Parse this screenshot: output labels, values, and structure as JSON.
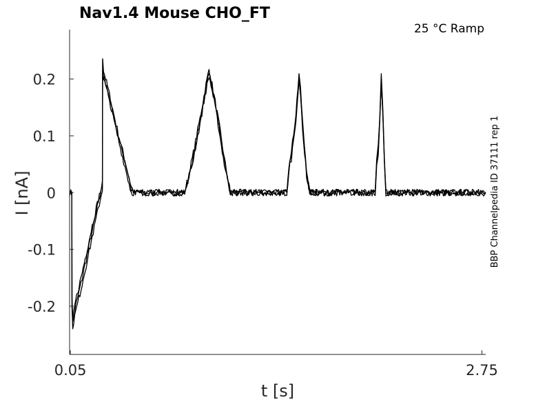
{
  "chart_data": {
    "type": "line",
    "title": "Nav1.4  Mouse  CHO_FT",
    "subtitle": "25 °C  Ramp",
    "xlabel": "t [s]",
    "ylabel": "I [nA]",
    "side_label": "BBP Channelpedia ID 37111 rep 1",
    "x_ticks": [
      {
        "value": 0.05,
        "label": "0.05"
      },
      {
        "value": 2.75,
        "label": "2.75"
      }
    ],
    "y_ticks": [
      {
        "value": 0.2,
        "label": "0.2"
      },
      {
        "value": 0.1,
        "label": "0.1"
      },
      {
        "value": 0,
        "label": "0"
      },
      {
        "value": -0.1,
        "label": "-0.1"
      },
      {
        "value": -0.2,
        "label": "-0.2"
      }
    ],
    "xlim": [
      0.045,
      2.775
    ],
    "ylim": [
      -0.285,
      0.287
    ],
    "grid": false,
    "legend": "none",
    "trace_color": "#000000",
    "series": [
      {
        "values": [
          [
            0.045,
            0.0
          ],
          [
            0.06,
            0.0
          ],
          [
            0.061,
            -0.2
          ],
          [
            0.066,
            -0.23
          ],
          [
            0.085,
            -0.2
          ],
          [
            0.12,
            -0.16
          ],
          [
            0.16,
            -0.11
          ],
          [
            0.2,
            -0.06
          ],
          [
            0.24,
            -0.01
          ],
          [
            0.26,
            0.01
          ],
          [
            0.262,
            0.24
          ],
          [
            0.268,
            0.215
          ],
          [
            0.3,
            0.18
          ],
          [
            0.35,
            0.12
          ],
          [
            0.4,
            0.065
          ],
          [
            0.45,
            0.01
          ],
          [
            0.47,
            0.0
          ],
          [
            0.8,
            0.0
          ],
          [
            0.85,
            0.06
          ],
          [
            0.9,
            0.13
          ],
          [
            0.94,
            0.19
          ],
          [
            0.96,
            0.217
          ],
          [
            0.98,
            0.19
          ],
          [
            1.02,
            0.13
          ],
          [
            1.06,
            0.06
          ],
          [
            1.1,
            0.0
          ],
          [
            1.47,
            0.0
          ],
          [
            1.49,
            0.06
          ],
          [
            1.5,
            0.07
          ],
          [
            1.53,
            0.14
          ],
          [
            1.55,
            0.21
          ],
          [
            1.56,
            0.18
          ],
          [
            1.58,
            0.1
          ],
          [
            1.6,
            0.04
          ],
          [
            1.62,
            0.0
          ],
          [
            2.05,
            0.0
          ],
          [
            2.06,
            0.06
          ],
          [
            2.07,
            0.08
          ],
          [
            2.08,
            0.13
          ],
          [
            2.09,
            0.205
          ],
          [
            2.1,
            0.15
          ],
          [
            2.11,
            0.06
          ],
          [
            2.12,
            0.0
          ],
          [
            2.775,
            0.0
          ]
        ],
        "noise": 0.006
      },
      {
        "values": [
          [
            0.045,
            0.0
          ],
          [
            0.06,
            0.0
          ],
          [
            0.061,
            -0.19
          ],
          [
            0.066,
            -0.225
          ],
          [
            0.085,
            -0.19
          ],
          [
            0.12,
            -0.15
          ],
          [
            0.16,
            -0.1
          ],
          [
            0.2,
            -0.05
          ],
          [
            0.24,
            -0.005
          ],
          [
            0.26,
            0.015
          ],
          [
            0.262,
            0.23
          ],
          [
            0.268,
            0.205
          ],
          [
            0.3,
            0.175
          ],
          [
            0.35,
            0.115
          ],
          [
            0.4,
            0.06
          ],
          [
            0.45,
            0.005
          ],
          [
            0.47,
            0.0
          ],
          [
            0.8,
            0.0
          ],
          [
            0.85,
            0.055
          ],
          [
            0.9,
            0.125
          ],
          [
            0.94,
            0.185
          ],
          [
            0.96,
            0.21
          ],
          [
            0.98,
            0.185
          ],
          [
            1.02,
            0.125
          ],
          [
            1.06,
            0.055
          ],
          [
            1.1,
            0.0
          ],
          [
            1.47,
            0.0
          ],
          [
            1.49,
            0.055
          ],
          [
            1.5,
            0.065
          ],
          [
            1.53,
            0.135
          ],
          [
            1.55,
            0.2
          ],
          [
            1.56,
            0.175
          ],
          [
            1.58,
            0.095
          ],
          [
            1.6,
            0.035
          ],
          [
            1.62,
            0.0
          ],
          [
            2.05,
            0.0
          ],
          [
            2.06,
            0.055
          ],
          [
            2.07,
            0.075
          ],
          [
            2.08,
            0.125
          ],
          [
            2.09,
            0.195
          ],
          [
            2.1,
            0.14
          ],
          [
            2.11,
            0.055
          ],
          [
            2.12,
            0.0
          ],
          [
            2.775,
            0.0
          ]
        ],
        "noise": 0.006
      },
      {
        "values": [
          [
            0.045,
            0.0
          ],
          [
            0.06,
            0.0
          ],
          [
            0.061,
            -0.205
          ],
          [
            0.066,
            -0.235
          ],
          [
            0.085,
            -0.21
          ],
          [
            0.12,
            -0.17
          ],
          [
            0.16,
            -0.12
          ],
          [
            0.2,
            -0.07
          ],
          [
            0.24,
            -0.02
          ],
          [
            0.26,
            0.005
          ],
          [
            0.262,
            0.22
          ],
          [
            0.268,
            0.2
          ],
          [
            0.3,
            0.17
          ],
          [
            0.35,
            0.11
          ],
          [
            0.4,
            0.055
          ],
          [
            0.45,
            0.0
          ],
          [
            0.47,
            0.0
          ],
          [
            0.8,
            0.0
          ],
          [
            0.85,
            0.05
          ],
          [
            0.9,
            0.12
          ],
          [
            0.94,
            0.18
          ],
          [
            0.96,
            0.205
          ],
          [
            0.98,
            0.18
          ],
          [
            1.02,
            0.12
          ],
          [
            1.06,
            0.05
          ],
          [
            1.1,
            0.0
          ],
          [
            1.47,
            0.0
          ],
          [
            1.49,
            0.05
          ],
          [
            1.5,
            0.06
          ],
          [
            1.53,
            0.13
          ],
          [
            1.55,
            0.195
          ],
          [
            1.56,
            0.17
          ],
          [
            1.58,
            0.09
          ],
          [
            1.6,
            0.03
          ],
          [
            1.62,
            0.0
          ],
          [
            2.05,
            0.0
          ],
          [
            2.06,
            0.05
          ],
          [
            2.07,
            0.07
          ],
          [
            2.08,
            0.12
          ],
          [
            2.09,
            0.19
          ],
          [
            2.1,
            0.135
          ],
          [
            2.11,
            0.05
          ],
          [
            2.12,
            0.0
          ],
          [
            2.775,
            0.0
          ]
        ],
        "noise": 0.006
      }
    ]
  }
}
